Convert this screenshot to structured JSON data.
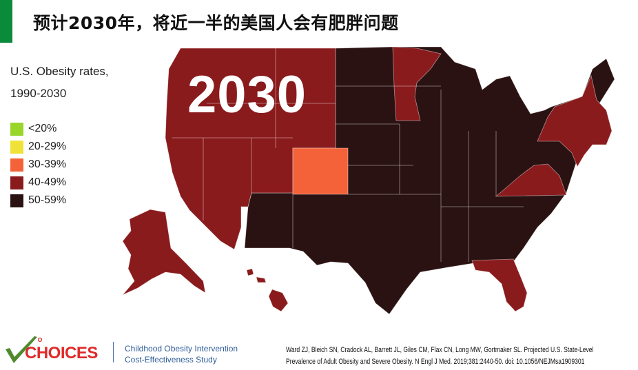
{
  "slide": {
    "title": "预计2030年，将近一半的美国人会有肥胖问题",
    "accent_color": "#0b8a3c"
  },
  "legend": {
    "title_line1": "U.S. Obesity rates,",
    "title_line2": "1990-2030",
    "items": [
      {
        "label": "<20%",
        "color": "#9ad52a"
      },
      {
        "label": "20-29%",
        "color": "#f1e23a"
      },
      {
        "label": "30-39%",
        "color": "#f4623a"
      },
      {
        "label": "40-49%",
        "color": "#8a1b1d"
      },
      {
        "label": "50-59%",
        "color": "#2b1212"
      }
    ]
  },
  "map": {
    "year": "2030",
    "categories": {
      "30-39%": [
        "Colorado"
      ],
      "40-49%": [
        "Washington",
        "Oregon",
        "California",
        "Nevada",
        "Idaho",
        "Montana",
        "Wyoming",
        "Utah",
        "Minnesota",
        "New York",
        "Vermont",
        "New Hampshire",
        "Massachusetts",
        "Connecticut",
        "Rhode Island",
        "New Jersey",
        "Virginia",
        "Florida",
        "Alaska",
        "Hawaii"
      ],
      "50-59%": [
        "all other states"
      ]
    }
  },
  "footer": {
    "logo_text": "CHOICES",
    "study_line1": "Childhood Obesity Intervention",
    "study_line2": "Cost-Effectiveness Study",
    "citation_line1": "Ward ZJ, Bleich SN, Cradock AL, Barrett JL, Giles CM, Flax CN, Long MW, Gortmaker SL. Projected U.S. State-Level",
    "citation_line2": "Prevalence of Adult Obesity and Severe Obesity. N Engl J Med. 2019;381:2440-50. doi: 10.1056/NEJMsa1909301"
  }
}
